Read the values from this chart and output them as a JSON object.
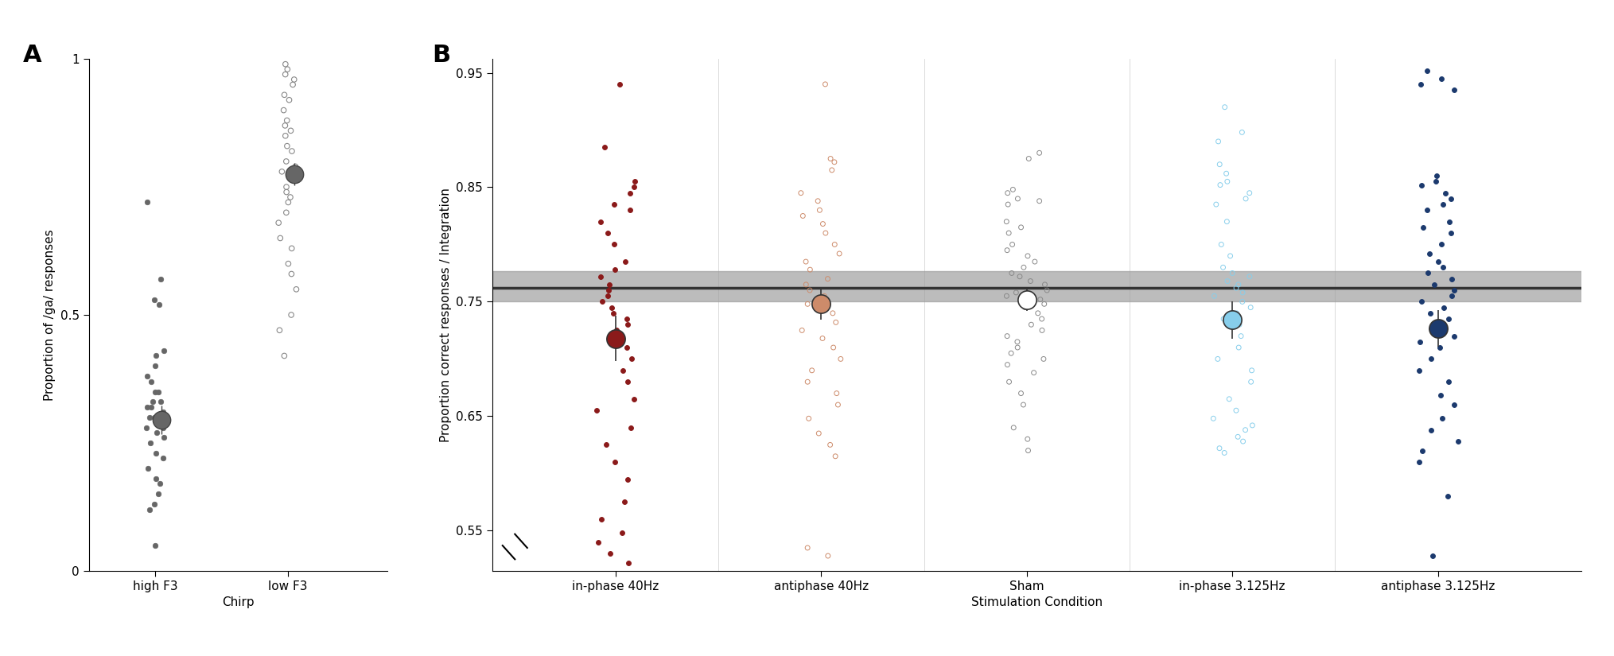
{
  "panel_A": {
    "xlabel": "Chirp",
    "ylabel": "Proportion of /ga/ responses",
    "ylim": [
      0,
      1
    ],
    "yticks": [
      0,
      0.5,
      1
    ],
    "ytick_labels": [
      "0",
      "0.5",
      "1"
    ],
    "xtick_labels": [
      "high F3",
      "low F3"
    ],
    "xtick_pos": [
      1,
      2
    ],
    "high_F3_dots": [
      0.72,
      0.57,
      0.53,
      0.52,
      0.43,
      0.42,
      0.4,
      0.38,
      0.37,
      0.35,
      0.35,
      0.33,
      0.33,
      0.32,
      0.32,
      0.31,
      0.3,
      0.3,
      0.28,
      0.28,
      0.27,
      0.26,
      0.25,
      0.23,
      0.22,
      0.2,
      0.18,
      0.17,
      0.15,
      0.13,
      0.12,
      0.05
    ],
    "high_F3_mean": 0.295,
    "high_F3_err": 0.028,
    "high_F3_filled": true,
    "low_F3_dots": [
      0.99,
      0.98,
      0.97,
      0.96,
      0.95,
      0.93,
      0.92,
      0.9,
      0.88,
      0.87,
      0.86,
      0.85,
      0.83,
      0.82,
      0.8,
      0.79,
      0.78,
      0.77,
      0.75,
      0.74,
      0.73,
      0.72,
      0.7,
      0.68,
      0.65,
      0.63,
      0.6,
      0.58,
      0.55,
      0.5,
      0.47,
      0.42
    ],
    "low_F3_mean": 0.775,
    "low_F3_err": 0.022,
    "low_F3_filled": false,
    "dot_color_filled": "#666666",
    "dot_color_open": "#888888",
    "dot_size": 22,
    "mean_dot_size": 260,
    "mean_dot_color": "#666666",
    "mean_dot_edgecolor": "#444444",
    "jitter_scale_A": 0.07
  },
  "panel_B": {
    "xlabel": "Stimulation Condition",
    "ylabel": "Proportion correct responses / Integration",
    "ylim": [
      0.515,
      0.962
    ],
    "yticks": [
      0.55,
      0.65,
      0.75,
      0.85,
      0.95
    ],
    "ytick_labels": [
      "0.55",
      "0.65",
      "0.75",
      "0.85",
      "0.95"
    ],
    "conditions": [
      "in-phase 40Hz",
      "antiphase 40Hz",
      "Sham",
      "in-phase 3.125Hz",
      "antiphase 3.125Hz"
    ],
    "condition_x": [
      1,
      2,
      3,
      4,
      5
    ],
    "reference_line": 0.762,
    "reference_band_low": 0.75,
    "reference_band_high": 0.777,
    "reference_color": "#333333",
    "reference_band_color": "#999999",
    "colors": {
      "in-phase 40Hz": "#8B1A1A",
      "antiphase 40Hz": "#CD8B6A",
      "Sham": "#888888",
      "in-phase 3.125Hz": "#87CEEB",
      "antiphase 3.125Hz": "#1C3A6E"
    },
    "filled": {
      "in-phase 40Hz": true,
      "antiphase 40Hz": false,
      "Sham": false,
      "in-phase 3.125Hz": false,
      "antiphase 3.125Hz": true
    },
    "means": {
      "in-phase 40Hz": 0.718,
      "antiphase 40Hz": 0.748,
      "Sham": 0.752,
      "in-phase 3.125Hz": 0.734,
      "antiphase 3.125Hz": 0.727
    },
    "errors": {
      "in-phase 40Hz": 0.02,
      "antiphase 40Hz": 0.014,
      "Sham": 0.01,
      "in-phase 3.125Hz": 0.016,
      "antiphase 3.125Hz": 0.016
    },
    "in_phase_40Hz_dots": [
      0.94,
      0.885,
      0.855,
      0.85,
      0.845,
      0.835,
      0.83,
      0.82,
      0.81,
      0.8,
      0.785,
      0.778,
      0.772,
      0.765,
      0.76,
      0.755,
      0.75,
      0.745,
      0.74,
      0.735,
      0.73,
      0.725,
      0.718,
      0.71,
      0.7,
      0.69,
      0.68,
      0.665,
      0.655,
      0.64,
      0.625,
      0.61,
      0.595,
      0.575,
      0.56,
      0.548,
      0.54,
      0.53,
      0.522,
      0.51
    ],
    "antiphase_40Hz_dots": [
      0.94,
      0.875,
      0.872,
      0.865,
      0.845,
      0.838,
      0.83,
      0.825,
      0.818,
      0.81,
      0.8,
      0.792,
      0.785,
      0.778,
      0.77,
      0.765,
      0.76,
      0.755,
      0.748,
      0.74,
      0.732,
      0.725,
      0.718,
      0.71,
      0.7,
      0.69,
      0.68,
      0.67,
      0.66,
      0.648,
      0.635,
      0.625,
      0.615,
      0.535,
      0.528
    ],
    "sham_dots": [
      0.88,
      0.875,
      0.848,
      0.845,
      0.84,
      0.838,
      0.835,
      0.82,
      0.815,
      0.81,
      0.8,
      0.795,
      0.79,
      0.785,
      0.78,
      0.775,
      0.772,
      0.768,
      0.765,
      0.76,
      0.758,
      0.755,
      0.752,
      0.748,
      0.745,
      0.74,
      0.735,
      0.73,
      0.725,
      0.72,
      0.715,
      0.71,
      0.705,
      0.7,
      0.695,
      0.688,
      0.68,
      0.67,
      0.66,
      0.64,
      0.63,
      0.62
    ],
    "in_phase_3125Hz_dots": [
      0.92,
      0.898,
      0.89,
      0.87,
      0.862,
      0.855,
      0.852,
      0.845,
      0.84,
      0.835,
      0.82,
      0.8,
      0.79,
      0.78,
      0.775,
      0.772,
      0.768,
      0.765,
      0.762,
      0.758,
      0.755,
      0.75,
      0.745,
      0.74,
      0.735,
      0.73,
      0.72,
      0.71,
      0.7,
      0.69,
      0.68,
      0.665,
      0.655,
      0.648,
      0.642,
      0.638,
      0.632,
      0.628,
      0.622,
      0.618
    ],
    "antiphase_3125Hz_dots": [
      0.952,
      0.945,
      0.94,
      0.935,
      0.86,
      0.855,
      0.852,
      0.845,
      0.84,
      0.835,
      0.83,
      0.82,
      0.815,
      0.81,
      0.8,
      0.792,
      0.785,
      0.78,
      0.775,
      0.77,
      0.765,
      0.76,
      0.755,
      0.75,
      0.745,
      0.74,
      0.735,
      0.73,
      0.725,
      0.72,
      0.715,
      0.71,
      0.7,
      0.69,
      0.68,
      0.668,
      0.66,
      0.648,
      0.638,
      0.628,
      0.62,
      0.61,
      0.58,
      0.528
    ],
    "dot_size": 18,
    "mean_dot_size": 280,
    "jitter_scale": 0.1
  }
}
